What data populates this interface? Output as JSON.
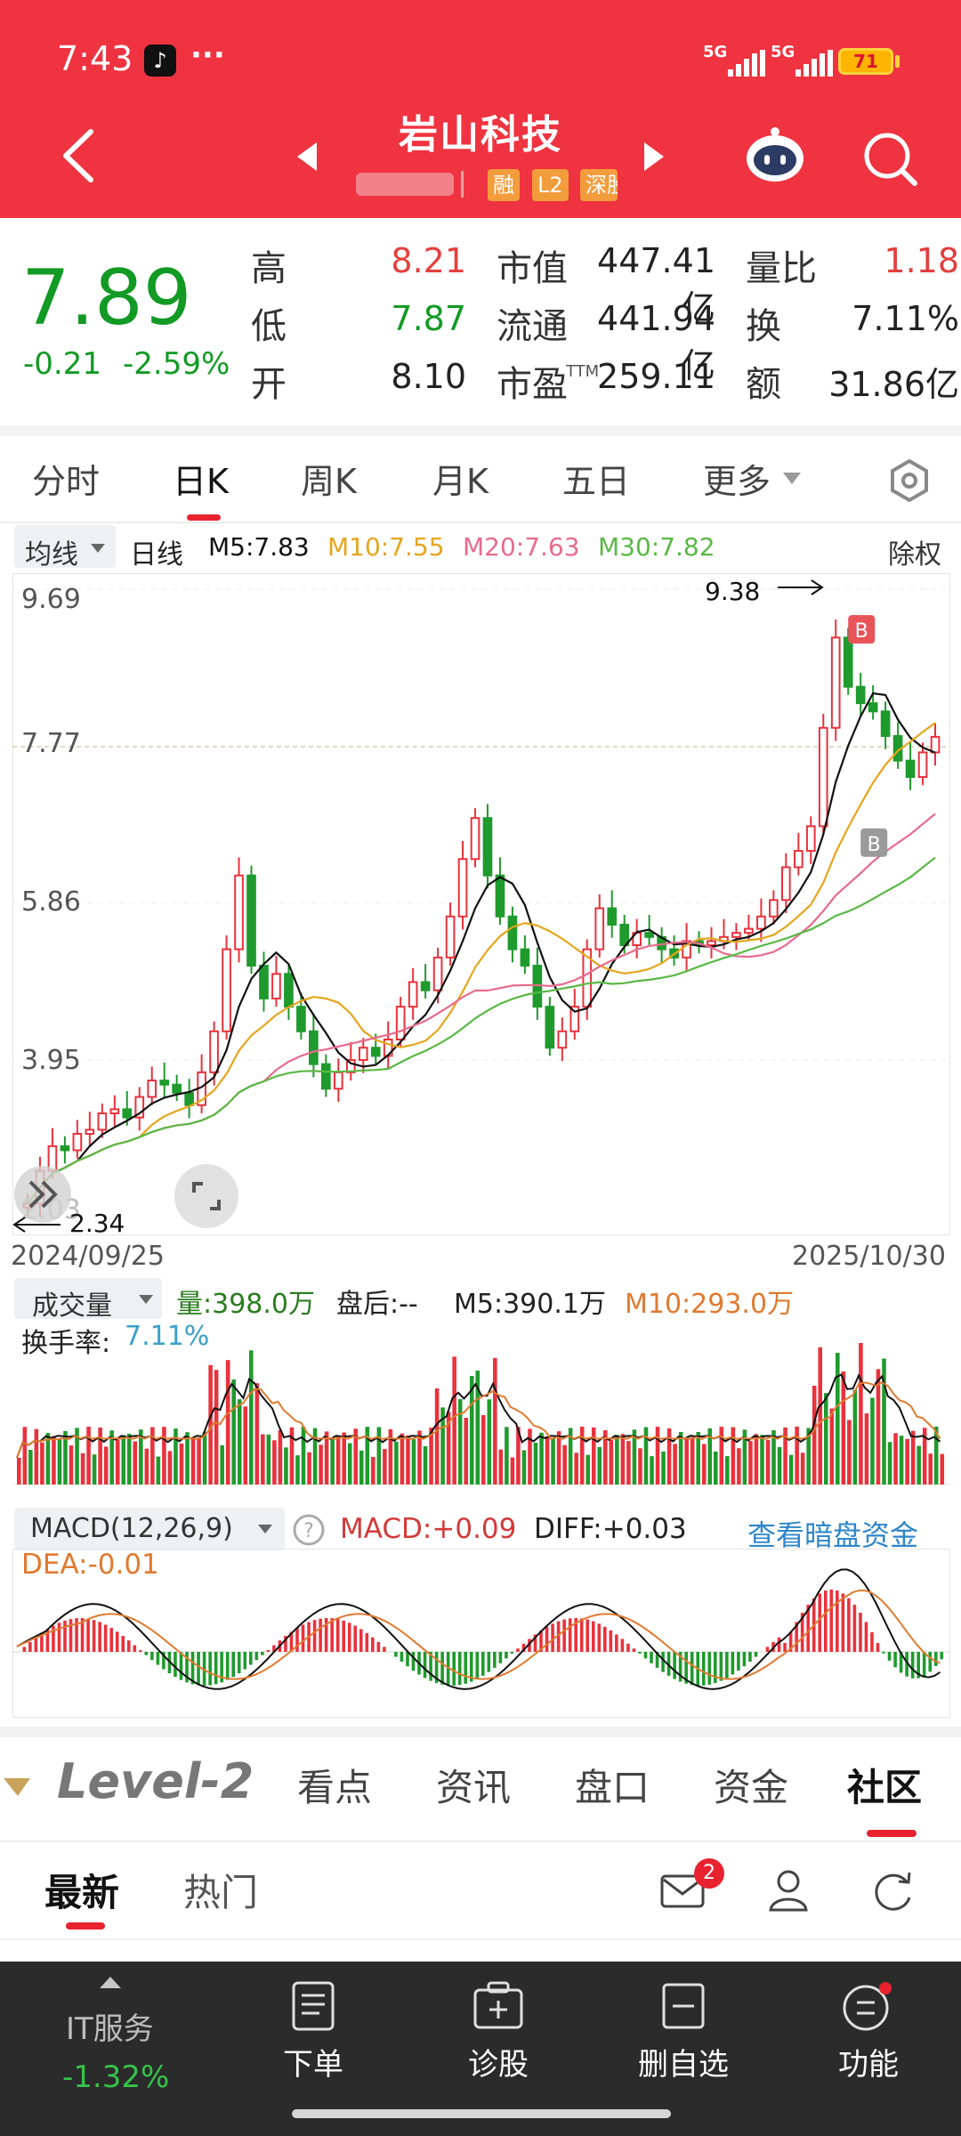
{
  "status_bar": {
    "time": "7:43",
    "sig1": "5G",
    "sig2": "5G",
    "battery": "71"
  },
  "header": {
    "title": "岩山科技",
    "badges": [
      "融",
      "L2",
      "深股"
    ]
  },
  "quote": {
    "price": "7.89",
    "change": "-0.21",
    "change_pct": "-2.59%",
    "high_label": "高",
    "high": "8.21",
    "low_label": "低",
    "low": "7.87",
    "open_label": "开",
    "open": "8.10",
    "mcap_label": "市值",
    "mcap": "447.41亿",
    "float_label": "流通",
    "float": "441.94亿",
    "pe_label": "市盈",
    "pe_sup": "TTM",
    "pe": "259.11",
    "vol_ratio_label": "量比",
    "vol_ratio": "1.18",
    "turnover_label": "换",
    "turnover": "7.11%",
    "amount_label": "额",
    "amount": "31.86亿"
  },
  "k_tabs": [
    "分时",
    "日K",
    "周K",
    "月K",
    "五日",
    "更多"
  ],
  "ma_bar": {
    "selector": "均线",
    "period": "日线",
    "m5": "M5:7.83",
    "m10": "M10:7.55",
    "m20": "M20:7.63",
    "m30": "M30:7.82",
    "adjust": "除权"
  },
  "chart_data": {
    "type": "candlestick",
    "y_ticks": [
      "9.69",
      "7.77",
      "5.86",
      "3.95",
      "2.03"
    ],
    "ylim": [
      2.03,
      9.69
    ],
    "x_start": "2024/09/25",
    "x_end": "2025/10/30",
    "max_label": "9.38",
    "min_label": "2.34",
    "ma_colors": {
      "m5": "#111111",
      "m10": "#e5a51c",
      "m20": "#e76b8c",
      "m30": "#59b844"
    },
    "close": [
      2.2,
      2.6,
      2.9,
      2.85,
      3.05,
      3.1,
      3.3,
      3.35,
      3.25,
      3.5,
      3.7,
      3.65,
      3.55,
      3.4,
      3.8,
      4.3,
      5.3,
      6.2,
      5.1,
      4.7,
      5.0,
      4.6,
      4.3,
      3.9,
      3.6,
      3.8,
      3.95,
      4.1,
      4.0,
      4.2,
      4.6,
      4.9,
      4.8,
      5.2,
      5.7,
      6.4,
      6.9,
      6.2,
      5.7,
      5.3,
      5.1,
      4.6,
      4.1,
      4.3,
      4.6,
      5.3,
      5.8,
      5.6,
      5.35,
      5.5,
      5.45,
      5.3,
      5.2,
      5.4,
      5.35,
      5.4,
      5.45,
      5.5,
      5.55,
      5.7,
      5.9,
      6.3,
      6.5,
      6.8,
      8.0,
      9.1,
      8.5,
      8.3,
      8.2,
      7.9,
      7.6,
      7.4,
      7.7,
      7.89
    ],
    "volume_label": "成交量",
    "volume": "量:398.0万",
    "after_hours": "盘后:--",
    "vol_m5": "M5:390.1万",
    "vol_m10": "M10:293.0万",
    "turnover_rate_label": "换手率:",
    "turnover_rate": "7.11%",
    "macd_title": "MACD(12,26,9)",
    "macd_value": "MACD:+0.09",
    "diff_value": "DIFF:+0.03",
    "dea_value": "DEA:-0.01",
    "dark_pool_link": "查看暗盘资金"
  },
  "bottom_tabs": {
    "brand": "Level-2",
    "items": [
      "看点",
      "资讯",
      "盘口",
      "资金",
      "社区"
    ]
  },
  "news_tabs": [
    "最新",
    "热门"
  ],
  "mail_badge": "2",
  "bottom_nav": {
    "sector": "IT服务",
    "sector_change": "-1.32%",
    "items": [
      "下单",
      "诊股",
      "删自选",
      "功能"
    ]
  }
}
